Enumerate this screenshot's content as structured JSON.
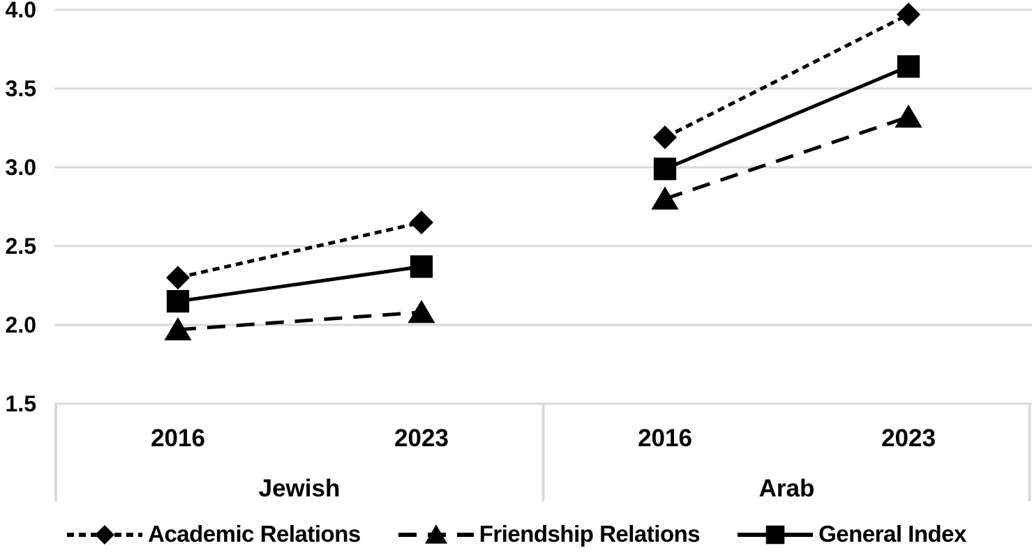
{
  "chart_data": {
    "type": "line",
    "title": "",
    "groups": [
      "Jewish",
      "Arab"
    ],
    "categories": [
      "2016",
      "2023",
      "2016",
      "2023"
    ],
    "category_group_map": [
      "Jewish",
      "Jewish",
      "Arab",
      "Arab"
    ],
    "series": [
      {
        "name": "Academic Relations",
        "marker": "diamond",
        "line_style": "short-dash",
        "values": [
          2.3,
          2.65,
          3.19,
          3.97
        ]
      },
      {
        "name": "Friendship Relations",
        "marker": "triangle",
        "line_style": "long-dash",
        "values": [
          1.97,
          2.08,
          2.8,
          3.32
        ]
      },
      {
        "name": "General Index",
        "marker": "square",
        "line_style": "solid",
        "values": [
          2.15,
          2.37,
          2.99,
          3.64
        ]
      }
    ],
    "y_tick_labels": [
      "4.0",
      "3.5",
      "3.0",
      "2.5",
      "2.0",
      "1.5"
    ],
    "y_tick_values": [
      4.0,
      3.5,
      3.0,
      2.5,
      2.0,
      1.5
    ],
    "ylim": [
      1.5,
      4.0
    ],
    "grid": true,
    "legend_position": "bottom",
    "series_color": "#000000",
    "gridline_color": "#d9d9d9"
  }
}
